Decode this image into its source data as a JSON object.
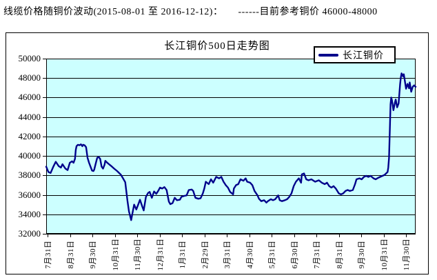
{
  "header": {
    "text": "线缆价格随铜价波动(2015-08-01 至 2016-12-12)：",
    "reference": "------目前参考铜价 46000-48000"
  },
  "chart": {
    "frame_color": "#000000",
    "background": "#ffffff"
  },
  "chart_data": {
    "type": "line",
    "title": "长江铜价500日走势图",
    "legend_position": "top-right-inside-frame",
    "grid": "horizontal-only",
    "plot_bg": "#CCFFFF",
    "x_axis": {
      "start_date": "2015-07-31",
      "end_date": "2016-12-12",
      "unit": "day-index-from-start",
      "total_days": 500,
      "tick_labels": [
        "7月31日",
        "8月31日",
        "9月30日",
        "10月31日",
        "11月30日",
        "12月31日",
        "1月31日",
        "2月29日",
        "3月31日",
        "4月30日",
        "5月31日",
        "6月30日",
        "7月31日",
        "8月31日",
        "9月30日",
        "10月31日",
        "11月30日"
      ]
    },
    "y_axis": {
      "min": 32000,
      "max": 50000,
      "step": 2000,
      "ticks": [
        50000,
        48000,
        46000,
        44000,
        42000,
        40000,
        38000,
        36000,
        34000,
        32000
      ]
    },
    "series": [
      {
        "name": "长江铜价",
        "color": "#00008B",
        "points": [
          [
            0,
            38900
          ],
          [
            3,
            38350
          ],
          [
            6,
            38250
          ],
          [
            10,
            38950
          ],
          [
            13,
            39400
          ],
          [
            17,
            38950
          ],
          [
            20,
            38800
          ],
          [
            22,
            39150
          ],
          [
            26,
            38700
          ],
          [
            29,
            38550
          ],
          [
            32,
            39300
          ],
          [
            35,
            39450
          ],
          [
            37,
            39300
          ],
          [
            39,
            39700
          ],
          [
            40,
            40600
          ],
          [
            41,
            41000
          ],
          [
            43,
            41150
          ],
          [
            45,
            41100
          ],
          [
            47,
            41200
          ],
          [
            49,
            41000
          ],
          [
            50,
            41150
          ],
          [
            52,
            41100
          ],
          [
            54,
            40900
          ],
          [
            56,
            39800
          ],
          [
            58,
            39300
          ],
          [
            60,
            38900
          ],
          [
            62,
            38500
          ],
          [
            64,
            38450
          ],
          [
            65,
            38600
          ],
          [
            67,
            39200
          ],
          [
            69,
            39800
          ],
          [
            71,
            39900
          ],
          [
            73,
            39700
          ],
          [
            75,
            38900
          ],
          [
            77,
            38700
          ],
          [
            79,
            39100
          ],
          [
            80,
            39500
          ],
          [
            82,
            39350
          ],
          [
            85,
            39150
          ],
          [
            89,
            38900
          ],
          [
            92,
            38700
          ],
          [
            96,
            38450
          ],
          [
            101,
            38080
          ],
          [
            104,
            37700
          ],
          [
            107,
            37300
          ],
          [
            110,
            35400
          ],
          [
            112,
            34300
          ],
          [
            115,
            33400
          ],
          [
            117,
            34200
          ],
          [
            119,
            35000
          ],
          [
            122,
            34500
          ],
          [
            125,
            35100
          ],
          [
            127,
            35500
          ],
          [
            130,
            34800
          ],
          [
            132,
            34400
          ],
          [
            135,
            35800
          ],
          [
            138,
            36200
          ],
          [
            140,
            36300
          ],
          [
            143,
            35700
          ],
          [
            146,
            36350
          ],
          [
            149,
            36100
          ],
          [
            152,
            36450
          ],
          [
            154,
            36750
          ],
          [
            157,
            36650
          ],
          [
            160,
            36800
          ],
          [
            163,
            36500
          ],
          [
            166,
            35300
          ],
          [
            168,
            35050
          ],
          [
            171,
            35150
          ],
          [
            174,
            35700
          ],
          [
            177,
            35450
          ],
          [
            181,
            35500
          ],
          [
            183,
            35800
          ],
          [
            187,
            35900
          ],
          [
            190,
            35950
          ],
          [
            193,
            36500
          ],
          [
            197,
            36550
          ],
          [
            199,
            36400
          ],
          [
            202,
            35700
          ],
          [
            206,
            35600
          ],
          [
            209,
            35650
          ],
          [
            212,
            36150
          ],
          [
            214,
            36650
          ],
          [
            216,
            37350
          ],
          [
            220,
            37100
          ],
          [
            223,
            37600
          ],
          [
            226,
            37250
          ],
          [
            230,
            37850
          ],
          [
            234,
            37700
          ],
          [
            237,
            37850
          ],
          [
            240,
            37350
          ],
          [
            243,
            37000
          ],
          [
            246,
            36750
          ],
          [
            249,
            36300
          ],
          [
            253,
            36050
          ],
          [
            254,
            36650
          ],
          [
            257,
            37000
          ],
          [
            260,
            37100
          ],
          [
            263,
            37600
          ],
          [
            267,
            37450
          ],
          [
            270,
            37700
          ],
          [
            272,
            37350
          ],
          [
            276,
            37250
          ],
          [
            279,
            37000
          ],
          [
            282,
            36400
          ],
          [
            286,
            35950
          ],
          [
            288,
            35600
          ],
          [
            291,
            35350
          ],
          [
            295,
            35450
          ],
          [
            298,
            35200
          ],
          [
            300,
            35350
          ],
          [
            304,
            35550
          ],
          [
            307,
            35450
          ],
          [
            310,
            35550
          ],
          [
            314,
            35950
          ],
          [
            316,
            35450
          ],
          [
            319,
            35350
          ],
          [
            323,
            35450
          ],
          [
            326,
            35550
          ],
          [
            329,
            35800
          ],
          [
            332,
            36150
          ],
          [
            335,
            36900
          ],
          [
            338,
            37350
          ],
          [
            342,
            37700
          ],
          [
            345,
            37250
          ],
          [
            346,
            38100
          ],
          [
            349,
            38200
          ],
          [
            352,
            37600
          ],
          [
            355,
            37500
          ],
          [
            359,
            37600
          ],
          [
            364,
            37350
          ],
          [
            369,
            37500
          ],
          [
            373,
            37250
          ],
          [
            377,
            37100
          ],
          [
            380,
            37250
          ],
          [
            383,
            36900
          ],
          [
            386,
            36750
          ],
          [
            389,
            36900
          ],
          [
            392,
            36650
          ],
          [
            396,
            36150
          ],
          [
            399,
            36050
          ],
          [
            402,
            36150
          ],
          [
            405,
            36400
          ],
          [
            408,
            36500
          ],
          [
            411,
            36400
          ],
          [
            415,
            36500
          ],
          [
            418,
            37100
          ],
          [
            420,
            37600
          ],
          [
            424,
            37700
          ],
          [
            427,
            37600
          ],
          [
            430,
            37850
          ],
          [
            433,
            37950
          ],
          [
            436,
            37850
          ],
          [
            439,
            37950
          ],
          [
            443,
            37700
          ],
          [
            446,
            37600
          ],
          [
            448,
            37700
          ],
          [
            452,
            37850
          ],
          [
            455,
            37950
          ],
          [
            458,
            38050
          ],
          [
            460,
            38200
          ],
          [
            462,
            38350
          ],
          [
            463,
            38800
          ],
          [
            464,
            39800
          ],
          [
            465,
            42500
          ],
          [
            466,
            45300
          ],
          [
            467,
            46000
          ],
          [
            468,
            45700
          ],
          [
            470,
            44700
          ],
          [
            472,
            45500
          ],
          [
            473,
            45800
          ],
          [
            475,
            45000
          ],
          [
            477,
            45400
          ],
          [
            478,
            46400
          ],
          [
            479,
            47400
          ],
          [
            480,
            48100
          ],
          [
            481,
            48480
          ],
          [
            483,
            48170
          ],
          [
            484,
            48400
          ],
          [
            485,
            47930
          ],
          [
            487,
            46900
          ],
          [
            489,
            47400
          ],
          [
            491,
            46950
          ],
          [
            492,
            47550
          ],
          [
            494,
            46600
          ],
          [
            496,
            47100
          ],
          [
            498,
            47250
          ],
          [
            500,
            47100
          ]
        ]
      }
    ]
  }
}
